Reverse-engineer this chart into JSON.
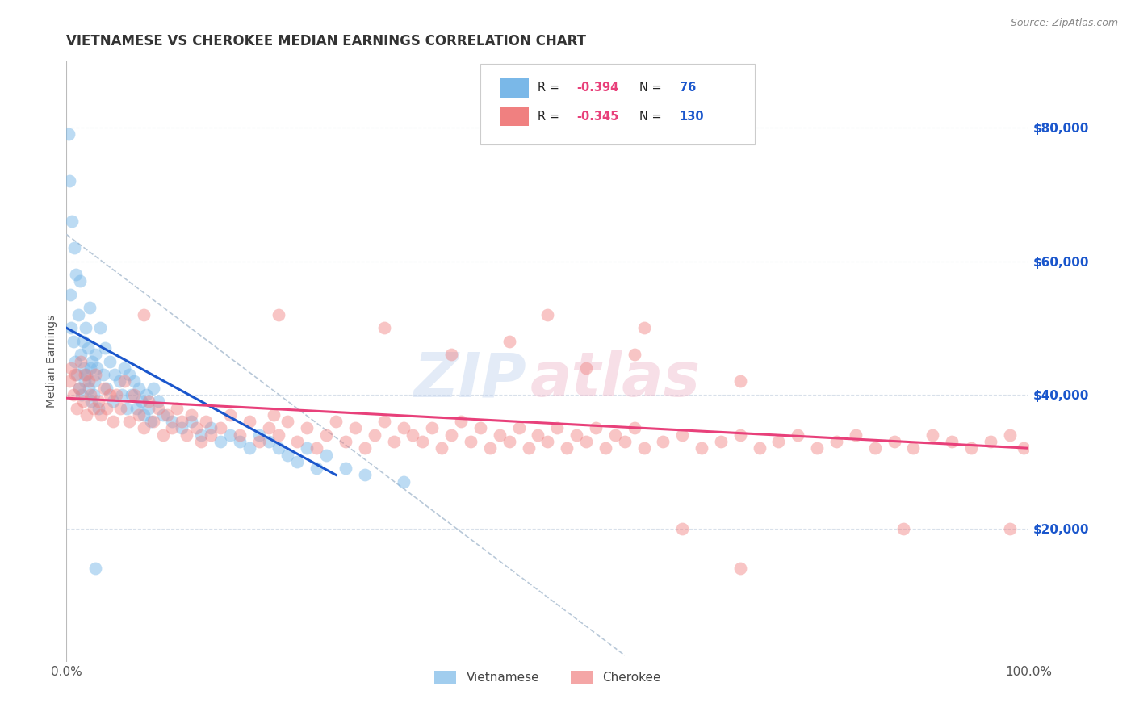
{
  "title": "VIETNAMESE VS CHEROKEE MEDIAN EARNINGS CORRELATION CHART",
  "source_text": "Source: ZipAtlas.com",
  "ylabel": "Median Earnings",
  "xlim": [
    0.0,
    1.0
  ],
  "ylim": [
    0,
    90000
  ],
  "title_color": "#333333",
  "title_fontsize": 12,
  "blue_scatter_color": "#7ab8e8",
  "pink_scatter_color": "#f08080",
  "blue_line_color": "#1a56cc",
  "pink_line_color": "#e8407a",
  "dashed_line_color": "#b8c8d8",
  "grid_color": "#d8e0ea",
  "background_color": "#ffffff",
  "ytick_color": "#1a56cc",
  "watermark_zip_color": "#c8d8f0",
  "watermark_atlas_color": "#f0c8d8",
  "legend_box_color": "#eeeeee",
  "legend_r_color": "#e8407a",
  "legend_n_color": "#1a56cc",
  "bottom_legend_color": "#444444"
}
